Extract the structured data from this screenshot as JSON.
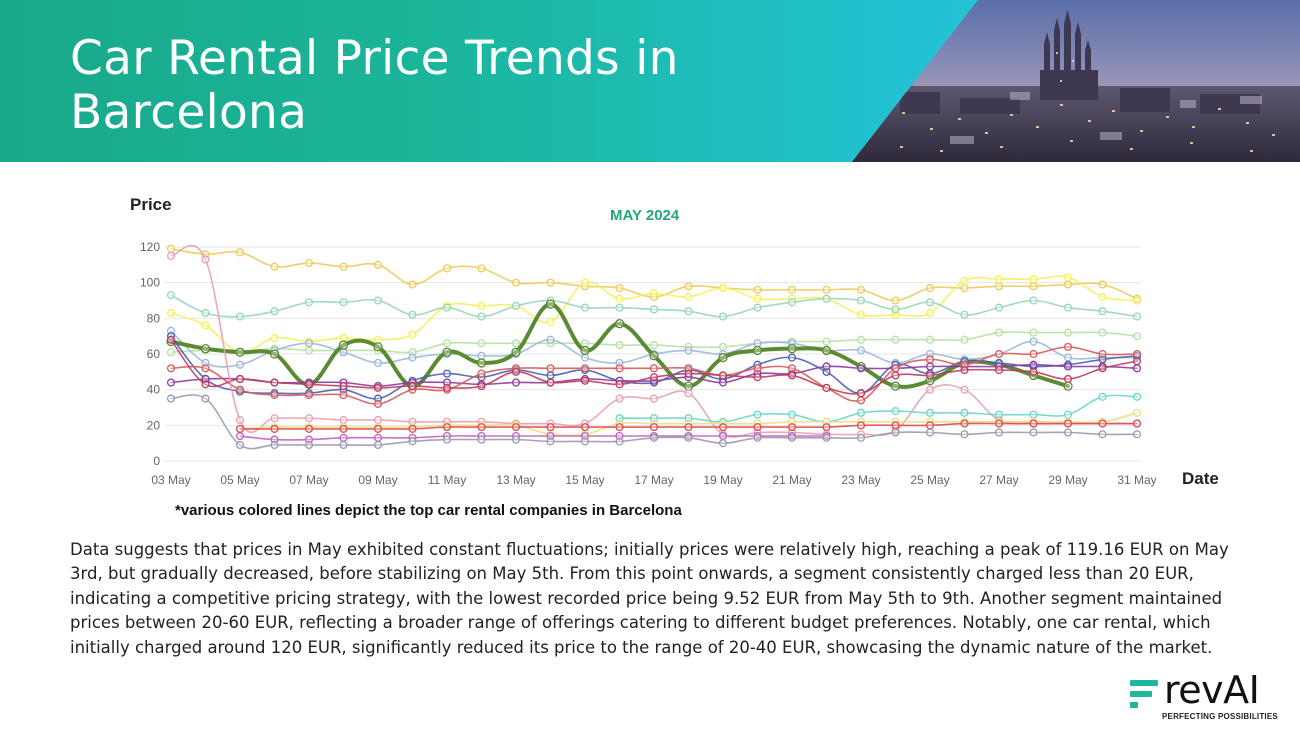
{
  "header": {
    "title": "Car Rental Price Trends in Barcelona"
  },
  "chart_data": {
    "type": "line",
    "title": "",
    "subtitle": "MAY 2024",
    "ylabel": "Price",
    "xlabel": "Date",
    "ylim": [
      0,
      120
    ],
    "yticks": [
      0,
      20,
      40,
      60,
      80,
      100,
      120
    ],
    "x": [
      "03 May",
      "04 May",
      "05 May",
      "06 May",
      "07 May",
      "08 May",
      "09 May",
      "10 May",
      "11 May",
      "12 May",
      "13 May",
      "14 May",
      "15 May",
      "16 May",
      "17 May",
      "18 May",
      "19 May",
      "20 May",
      "21 May",
      "22 May",
      "23 May",
      "24 May",
      "25 May",
      "26 May",
      "27 May",
      "28 May",
      "29 May",
      "30 May",
      "31 May"
    ],
    "xtick_labels": [
      "03 May",
      "05 May",
      "07 May",
      "09 May",
      "11 May",
      "13 May",
      "15 May",
      "17 May",
      "19 May",
      "21 May",
      "23 May",
      "25 May",
      "27 May",
      "29 May",
      "31 May"
    ],
    "grid": true,
    "legend": "none",
    "series": [
      {
        "color": "#f0c95a",
        "values": [
          119,
          116,
          117,
          109,
          111,
          109,
          110,
          99,
          108,
          108,
          100,
          100,
          98,
          97,
          92,
          98,
          97,
          96,
          96,
          96,
          96,
          90,
          97,
          97,
          98,
          98,
          99,
          99,
          91
        ]
      },
      {
        "color": "#f2f25a",
        "values": [
          83,
          76,
          61,
          69,
          67,
          69,
          68,
          71,
          87,
          87,
          87,
          78,
          100,
          91,
          94,
          92,
          97,
          91,
          91,
          91,
          82,
          82,
          83,
          101,
          102,
          102,
          103,
          92,
          90
        ]
      },
      {
        "color": "#97d6b8",
        "values": [
          93,
          83,
          81,
          84,
          89,
          89,
          90,
          82,
          86,
          81,
          87,
          90,
          86,
          86,
          85,
          84,
          81,
          86,
          89,
          91,
          90,
          85,
          89,
          82,
          86,
          90,
          86,
          84,
          81
        ]
      },
      {
        "color": "#b6e0a4",
        "values": [
          61,
          62,
          61,
          63,
          62,
          62,
          62,
          61,
          66,
          66,
          66,
          66,
          66,
          65,
          65,
          64,
          64,
          66,
          67,
          67,
          68,
          68,
          68,
          68,
          72,
          72,
          72,
          72,
          70
        ]
      },
      {
        "color": "#9bb6dc",
        "values": [
          73,
          55,
          54,
          62,
          66,
          61,
          55,
          58,
          60,
          59,
          60,
          68,
          58,
          55,
          60,
          62,
          60,
          66,
          66,
          62,
          62,
          55,
          60,
          57,
          60,
          67,
          58,
          58,
          58
        ]
      },
      {
        "color": "#5a8a32",
        "width": 4,
        "values": [
          67,
          63,
          61,
          60,
          43,
          65,
          64,
          42,
          61,
          55,
          61,
          88,
          62,
          77,
          59,
          42,
          58,
          62,
          63,
          62,
          53,
          42,
          45,
          55,
          54,
          48,
          42,
          null,
          null
        ]
      },
      {
        "color": "#4a5fb0",
        "values": [
          70,
          46,
          39,
          38,
          38,
          40,
          35,
          45,
          49,
          47,
          51,
          48,
          51,
          45,
          44,
          51,
          46,
          54,
          58,
          50,
          38,
          54,
          49,
          56,
          55,
          53,
          54,
          57,
          59
        ]
      },
      {
        "color": "#8a3aa0",
        "values": [
          44,
          46,
          46,
          44,
          44,
          44,
          42,
          44,
          44,
          43,
          44,
          44,
          46,
          45,
          45,
          47,
          44,
          49,
          49,
          53,
          52,
          52,
          53,
          53,
          53,
          54,
          53,
          53,
          52
        ]
      },
      {
        "color": "#d85a5a",
        "values": [
          52,
          52,
          40,
          37,
          37,
          37,
          32,
          40,
          40,
          49,
          52,
          52,
          52,
          52,
          52,
          52,
          48,
          52,
          52,
          41,
          34,
          52,
          57,
          54,
          60,
          60,
          64,
          60,
          60
        ]
      },
      {
        "color": "#c03a5a",
        "values": [
          68,
          43,
          46,
          44,
          43,
          42,
          41,
          42,
          41,
          42,
          50,
          44,
          45,
          43,
          47,
          49,
          48,
          47,
          48,
          41,
          38,
          48,
          48,
          51,
          51,
          50,
          46,
          52,
          56
        ]
      },
      {
        "color": "#e8a0b0",
        "values": [
          115,
          113,
          23,
          24,
          24,
          23,
          23,
          22,
          22,
          22,
          21,
          21,
          21,
          35,
          35,
          38,
          15,
          16,
          16,
          15,
          15,
          17,
          40,
          40,
          23,
          21,
          21,
          21,
          21
        ]
      },
      {
        "color": "#6ad6c8",
        "values": [
          null,
          null,
          null,
          null,
          null,
          null,
          null,
          null,
          null,
          null,
          null,
          null,
          null,
          24,
          24,
          24,
          22,
          26,
          26,
          22,
          27,
          28,
          27,
          27,
          26,
          26,
          26,
          36,
          36
        ]
      },
      {
        "color": "#e8e080",
        "values": [
          null,
          null,
          18,
          19,
          19,
          19,
          19,
          19,
          20,
          20,
          20,
          15,
          15,
          21,
          21,
          21,
          21,
          21,
          22,
          22,
          22,
          22,
          22,
          22,
          22,
          22,
          22,
          22,
          27
        ]
      },
      {
        "color": "#c060c0",
        "values": [
          null,
          null,
          14,
          12,
          12,
          13,
          13,
          13,
          14,
          14,
          14,
          14,
          14,
          14,
          14,
          14,
          14,
          14,
          14,
          14,
          null,
          null,
          null,
          null,
          null,
          null,
          null,
          null,
          null
        ]
      },
      {
        "color": "#e04a50",
        "values": [
          null,
          null,
          18,
          18,
          18,
          18,
          18,
          18,
          19,
          19,
          19,
          19,
          19,
          19,
          19,
          19,
          19,
          19,
          19,
          19,
          20,
          20,
          20,
          21,
          21,
          21,
          21,
          21,
          21
        ]
      },
      {
        "color": "#9a9ab0",
        "values": [
          35,
          35,
          9,
          9,
          9,
          9,
          9,
          11,
          12,
          12,
          12,
          11,
          11,
          11,
          13,
          13,
          10,
          13,
          13,
          13,
          13,
          16,
          16,
          15,
          16,
          16,
          16,
          15,
          15
        ]
      }
    ]
  },
  "footnote": "*various colored lines depict the top car rental companies in Barcelona",
  "summary": "Data suggests that prices in May exhibited constant fluctuations; initially prices were relatively high, reaching a peak of 119.16 EUR on May 3rd, but gradually decreased, before stabilizing on May 5th. From this point onwards, a segment consistently charged less than 20 EUR, indicating a competitive pricing strategy, with the lowest recorded price being 9.52 EUR from May 5th to 9th. Another segment maintained prices between 20-60 EUR, reflecting a broader range of offerings catering to different budget preferences. Notably, one car rental, which initially charged around 120 EUR, significantly reduced its price to the range of 20-40 EUR, showcasing the dynamic nature of the market.",
  "logo": {
    "wordmark": "revAI",
    "tagline": "PERFECTING POSSIBILITIES",
    "accent": "#1bb99a"
  }
}
